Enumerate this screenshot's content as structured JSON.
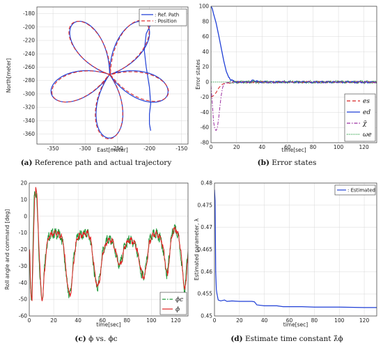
{
  "captions": [
    {
      "label": "(a)",
      "text": " Reference path and actual trajectory"
    },
    {
      "label": "(b)",
      "text": " Error states"
    },
    {
      "label": "(c)",
      "text": " ϕ vs. ϕc"
    },
    {
      "label": "(d)",
      "text": " Estimate time constant λ̂ϕ"
    }
  ],
  "chart_data": [
    {
      "type": "line",
      "xlabel": "East[meter]",
      "ylabel": "North[meter]",
      "xlim": [
        -375,
        -140
      ],
      "ylim": [
        -375,
        -170
      ],
      "xticks": [
        -350,
        -300,
        -250,
        -200,
        -150
      ],
      "yticks": [
        -360,
        -340,
        -320,
        -300,
        -280,
        -260,
        -240,
        -220,
        -200,
        -180
      ],
      "grid": true,
      "legend_position": "top-right",
      "flower": {
        "center": [
          -262,
          -271
        ],
        "amplitude": 95,
        "petals": 5
      },
      "series": [
        {
          "name": "Ref. Path",
          "color": "#1f3fd6",
          "style": "solid",
          "entry": [
            [
              -195,
              -190
            ],
            [
              -205,
              -210
            ],
            [
              -208,
              -235
            ],
            [
              -205,
              -260
            ],
            [
              -200,
              -290
            ],
            [
              -198,
              -315
            ],
            [
              -200,
              -330
            ],
            [
              -200,
              -345
            ],
            [
              -198,
              -355
            ]
          ]
        },
        {
          "name": "Position",
          "color": "#e03030",
          "style": "dashed"
        }
      ]
    },
    {
      "type": "line",
      "xlabel": "time[sec]",
      "ylabel": "Error states",
      "xlim": [
        0,
        130
      ],
      "ylim": [
        -80,
        100
      ],
      "xticks": [
        0,
        20,
        40,
        60,
        80,
        100,
        120
      ],
      "yticks": [
        -80,
        -60,
        -40,
        -20,
        0,
        20,
        40,
        60,
        80,
        100
      ],
      "grid": true,
      "legend_position": "bottom-right",
      "series": [
        {
          "name": "e_s",
          "legend": "es",
          "color": "#d62020",
          "style": "dashed",
          "points": [
            [
              0,
              -20
            ],
            [
              2,
              -18
            ],
            [
              4,
              -14
            ],
            [
              6,
              -8
            ],
            [
              8,
              -4
            ],
            [
              10,
              -2
            ],
            [
              14,
              -1
            ],
            [
              20,
              0
            ],
            [
              130,
              0
            ]
          ]
        },
        {
          "name": "e_d",
          "legend": "ed",
          "color": "#1f3fd6",
          "style": "solid",
          "points": [
            [
              0,
              100
            ],
            [
              1,
              97
            ],
            [
              2,
              90
            ],
            [
              4,
              78
            ],
            [
              6,
              62
            ],
            [
              8,
              45
            ],
            [
              10,
              28
            ],
            [
              12,
              14
            ],
            [
              14,
              6
            ],
            [
              16,
              2
            ],
            [
              20,
              0
            ],
            [
              30,
              0
            ],
            [
              33,
              2
            ],
            [
              36,
              1
            ],
            [
              40,
              0
            ],
            [
              130,
              0
            ]
          ]
        },
        {
          "name": "chi_tilde",
          "legend": "χ̃",
          "color": "#9b2fa0",
          "style": "dashdot",
          "points": [
            [
              0,
              -5
            ],
            [
              1,
              -28
            ],
            [
              2,
              -52
            ],
            [
              3,
              -62
            ],
            [
              4,
              -64
            ],
            [
              5,
              -60
            ],
            [
              6,
              -48
            ],
            [
              7,
              -32
            ],
            [
              8,
              -18
            ],
            [
              9,
              -8
            ],
            [
              10,
              -3
            ],
            [
              12,
              -1
            ],
            [
              16,
              0
            ],
            [
              130,
              0
            ]
          ]
        },
        {
          "name": "omega_e",
          "legend": "ωe",
          "color": "#1e9a3a",
          "style": "dotted",
          "points": [
            [
              0,
              0
            ],
            [
              130,
              0
            ]
          ]
        }
      ]
    },
    {
      "type": "line",
      "xlabel": "time[sec]",
      "ylabel": "Roll angle and command [deg]",
      "xlim": [
        0,
        130
      ],
      "ylim": [
        -60,
        20
      ],
      "xticks": [
        0,
        20,
        40,
        60,
        80,
        100,
        120
      ],
      "yticks": [
        -60,
        -50,
        -40,
        -30,
        -20,
        -10,
        0,
        10,
        20
      ],
      "grid": true,
      "legend_position": "bottom-right",
      "series": [
        {
          "name": "phi_c",
          "legend": "ϕc",
          "color": "#1e9a3a",
          "style": "dashdot"
        },
        {
          "name": "phi",
          "legend": "ϕ",
          "color": "#e02020",
          "style": "solid"
        }
      ],
      "profile": [
        [
          0,
          -20
        ],
        [
          1,
          -45
        ],
        [
          2,
          -50
        ],
        [
          3,
          -20
        ],
        [
          4,
          10
        ],
        [
          5,
          17
        ],
        [
          6,
          12
        ],
        [
          7,
          -5
        ],
        [
          8,
          -25
        ],
        [
          9,
          -40
        ],
        [
          10,
          -50
        ],
        [
          11,
          -48
        ],
        [
          12,
          -35
        ],
        [
          14,
          -18
        ],
        [
          16,
          -12
        ],
        [
          20,
          -10
        ],
        [
          24,
          -11
        ],
        [
          26,
          -12
        ],
        [
          28,
          -18
        ],
        [
          30,
          -35
        ],
        [
          32,
          -45
        ],
        [
          33,
          -48
        ],
        [
          34,
          -45
        ],
        [
          36,
          -28
        ],
        [
          38,
          -16
        ],
        [
          40,
          -12
        ],
        [
          44,
          -11
        ],
        [
          48,
          -10
        ],
        [
          50,
          -14
        ],
        [
          52,
          -25
        ],
        [
          54,
          -38
        ],
        [
          56,
          -43
        ],
        [
          58,
          -35
        ],
        [
          60,
          -22
        ],
        [
          64,
          -14
        ],
        [
          68,
          -15
        ],
        [
          70,
          -20
        ],
        [
          72,
          -26
        ],
        [
          74,
          -30
        ],
        [
          76,
          -25
        ],
        [
          78,
          -18
        ],
        [
          82,
          -14
        ],
        [
          86,
          -16
        ],
        [
          88,
          -20
        ],
        [
          90,
          -28
        ],
        [
          92,
          -35
        ],
        [
          94,
          -37
        ],
        [
          96,
          -28
        ],
        [
          98,
          -16
        ],
        [
          100,
          -12
        ],
        [
          104,
          -10
        ],
        [
          108,
          -14
        ],
        [
          110,
          -22
        ],
        [
          112,
          -33
        ],
        [
          113,
          -36
        ],
        [
          114,
          -28
        ],
        [
          116,
          -14
        ],
        [
          118,
          -8
        ],
        [
          120,
          -8
        ],
        [
          122,
          -12
        ],
        [
          124,
          -22
        ],
        [
          126,
          -38
        ],
        [
          127,
          -45
        ],
        [
          128,
          -40
        ],
        [
          129,
          -28
        ],
        [
          130,
          -20
        ]
      ]
    },
    {
      "type": "line",
      "xlabel": "time[sec]",
      "ylabel": "Estimated parameter, λ",
      "xlim": [
        0,
        130
      ],
      "ylim": [
        0.45,
        0.48
      ],
      "xticks": [
        0,
        20,
        40,
        60,
        80,
        100,
        120
      ],
      "yticks": [
        0.45,
        0.455,
        0.46,
        0.465,
        0.47,
        0.475,
        0.48
      ],
      "grid": true,
      "legend_position": "top-right",
      "series": [
        {
          "name": "Estimated",
          "legend": ": Estimated",
          "color": "#1f3fd6",
          "style": "solid",
          "points": [
            [
              0,
              0.4785
            ],
            [
              0.5,
              0.476
            ],
            [
              1,
              0.46
            ],
            [
              1.5,
              0.456
            ],
            [
              2,
              0.455
            ],
            [
              3,
              0.4536
            ],
            [
              5,
              0.4534
            ],
            [
              8,
              0.4536
            ],
            [
              10,
              0.4533
            ],
            [
              14,
              0.4534
            ],
            [
              20,
              0.4533
            ],
            [
              30,
              0.4533
            ],
            [
              32,
              0.4532
            ],
            [
              34,
              0.4525
            ],
            [
              40,
              0.4523
            ],
            [
              50,
              0.4523
            ],
            [
              55,
              0.4521
            ],
            [
              70,
              0.4521
            ],
            [
              80,
              0.452
            ],
            [
              90,
              0.452
            ],
            [
              100,
              0.452
            ],
            [
              120,
              0.4519
            ],
            [
              130,
              0.4519
            ]
          ]
        }
      ]
    }
  ]
}
